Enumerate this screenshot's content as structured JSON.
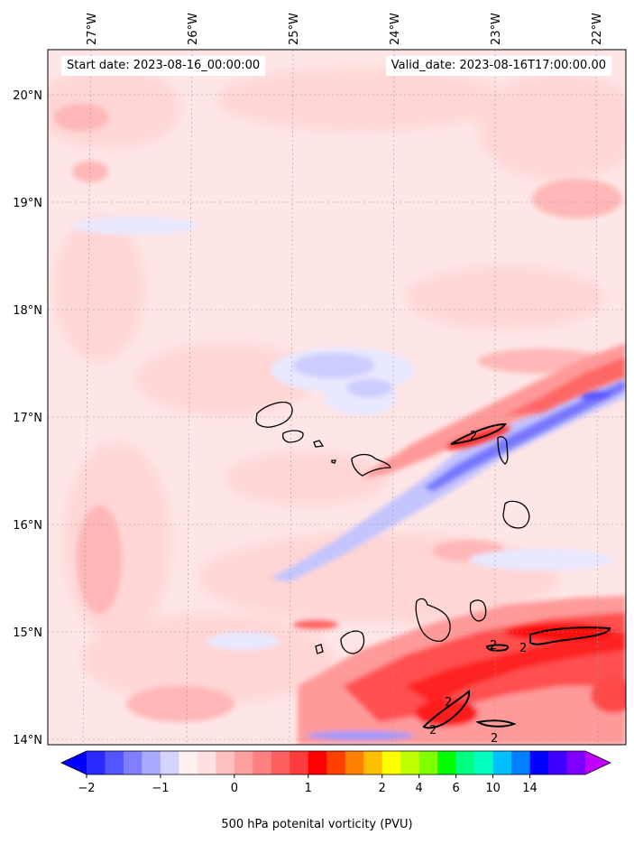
{
  "header": {
    "start_date": "Start date: 2023-08-16_00:00:00",
    "valid_date": "Valid_date: 2023-08-16T17:00:00.00"
  },
  "map": {
    "lon_labels": [
      "27°W",
      "26°W",
      "25°W",
      "24°W",
      "23°W",
      "22°W"
    ],
    "lat_labels": [
      "20°N",
      "19°N",
      "18°N",
      "17°N",
      "16°N",
      "15°N",
      "14°N"
    ],
    "contour_label": "2"
  },
  "colorbar": {
    "title": "500 hPa potenital vorticity (PVU)",
    "tick_labels": [
      "−2",
      "−1",
      "0",
      "1",
      "2",
      "4",
      "6",
      "10",
      "14"
    ],
    "colors": [
      "#0000ff",
      "#2a2aff",
      "#5555ff",
      "#7f7fff",
      "#aaaaff",
      "#d4d4ff",
      "#fff0f0",
      "#ffe0e0",
      "#ffc0c0",
      "#ffa0a0",
      "#ff8080",
      "#ff5f5f",
      "#ff3c3c",
      "#ff0000",
      "#ff4000",
      "#ff8000",
      "#ffbf00",
      "#ffff00",
      "#c0ff00",
      "#80ff00",
      "#00ff00",
      "#00ff80",
      "#00ffc0",
      "#00bfff",
      "#0080ff",
      "#0000ff",
      "#4000ff",
      "#8000ff",
      "#bf00ff"
    ]
  }
}
